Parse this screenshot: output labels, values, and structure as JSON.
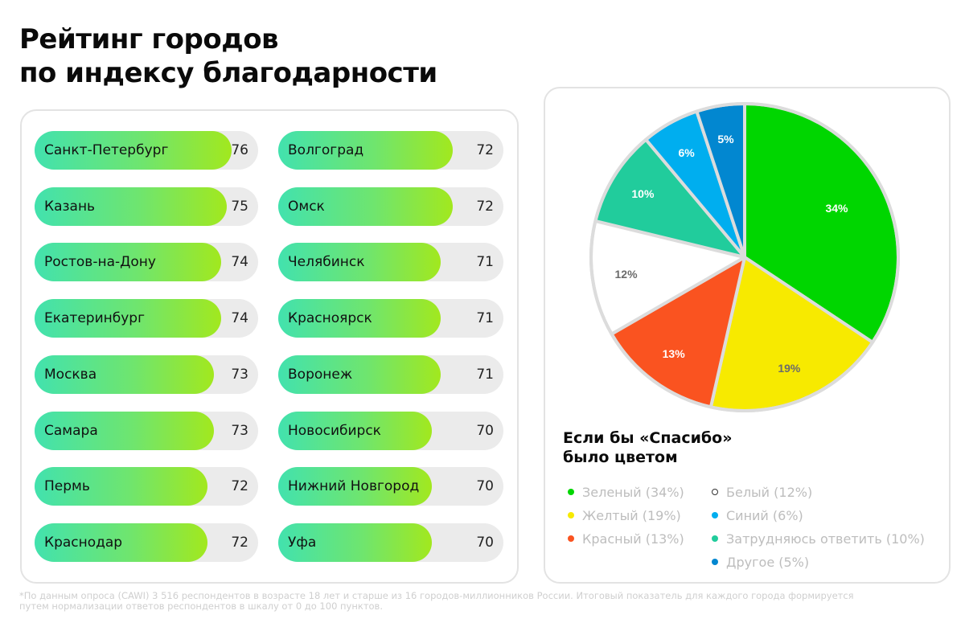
{
  "title": {
    "line1": "Рейтинг городов",
    "line2": "по индексу благодарности"
  },
  "ranking": {
    "scale_min": 0,
    "scale_max": 100,
    "left_column": [
      {
        "city": "Санкт-Петербург",
        "value": 76
      },
      {
        "city": "Казань",
        "value": 75
      },
      {
        "city": "Ростов-на-Дону",
        "value": 74
      },
      {
        "city": "Екатеринбург",
        "value": 74
      },
      {
        "city": "Москва",
        "value": 73
      },
      {
        "city": "Самара",
        "value": 73
      },
      {
        "city": "Пермь",
        "value": 72
      },
      {
        "city": "Краснодар",
        "value": 72
      }
    ],
    "right_column": [
      {
        "city": "Волгоград",
        "value": 72
      },
      {
        "city": "Омск",
        "value": 72
      },
      {
        "city": "Челябинск",
        "value": 71
      },
      {
        "city": "Красноярск",
        "value": 71
      },
      {
        "city": "Воронеж",
        "value": 71
      },
      {
        "city": "Новосибирск",
        "value": 70
      },
      {
        "city": "Нижний Новгород",
        "value": 70
      },
      {
        "city": "Уфа",
        "value": 70
      }
    ]
  },
  "pie": {
    "title_line1": "Если бы «Спасибо»",
    "title_line2": "было цветом",
    "border_color": "#dcdcdc",
    "slices": [
      {
        "label": "34%",
        "value": 34,
        "color": "#00d600",
        "text_color": "#ffffff"
      },
      {
        "label": "19%",
        "value": 19,
        "color": "#f7ea00",
        "text_color": "#6b6b6b"
      },
      {
        "label": "13%",
        "value": 13,
        "color": "#fa5320",
        "text_color": "#ffffff"
      },
      {
        "label": "12%",
        "value": 12,
        "color": "#ffffff",
        "text_color": "#6b6b6b"
      },
      {
        "label": "10%",
        "value": 10,
        "color": "#21cc9c",
        "text_color": "#ffffff"
      },
      {
        "label": "6%",
        "value": 6,
        "color": "#00aeef",
        "text_color": "#ffffff"
      },
      {
        "label": "5%",
        "value": 5,
        "color": "#0287d0",
        "text_color": "#ffffff"
      }
    ],
    "legend": [
      {
        "text": "Зеленый (34%)",
        "color": "#00d600"
      },
      {
        "text": "Желтый (19%)",
        "color": "#f7ea00"
      },
      {
        "text": "Красный (13%)",
        "color": "#fa5320"
      },
      {
        "text": "Белый (12%)",
        "color": "#ffffff"
      },
      {
        "text": "Синий (6%)",
        "color": "#00aeef"
      },
      {
        "text": "Затрудняюсь ответить (10%)",
        "color": "#21cc9c"
      },
      {
        "text": "Другое (5%)",
        "color": "#0287d0"
      }
    ]
  },
  "footnote": {
    "line1": "*По данным опроса (CAWI) 3 516 респондентов в возрасте 18 лет и старше из 16 городов-миллионников России. Итоговый показатель для каждого города формируется",
    "line2": "путем нормализации ответов респондентов в шкалу от 0 до 100 пунктов."
  },
  "chart_data": [
    {
      "type": "bar",
      "orientation": "horizontal",
      "title": "Рейтинг городов по индексу благодарности",
      "categories": [
        "Санкт-Петербург",
        "Казань",
        "Ростов-на-Дону",
        "Екатеринбург",
        "Москва",
        "Самара",
        "Пермь",
        "Краснодар",
        "Волгоград",
        "Омск",
        "Челябинск",
        "Красноярск",
        "Воронеж",
        "Новосибирск",
        "Нижний Новгород",
        "Уфа"
      ],
      "values": [
        76,
        75,
        74,
        74,
        73,
        73,
        72,
        72,
        72,
        72,
        71,
        71,
        71,
        70,
        70,
        70
      ],
      "xlabel": "",
      "ylabel": "",
      "xlim": [
        0,
        100
      ],
      "grid": false,
      "data_labels": true
    },
    {
      "type": "pie",
      "title": "Если бы «Спасибо» было цветом",
      "categories": [
        "Зеленый",
        "Желтый",
        "Красный",
        "Белый",
        "Затрудняюсь ответить",
        "Синий",
        "Другое"
      ],
      "values": [
        34,
        19,
        13,
        12,
        10,
        6,
        5
      ],
      "colors": [
        "#00d600",
        "#f7ea00",
        "#fa5320",
        "#ffffff",
        "#21cc9c",
        "#00aeef",
        "#0287d0"
      ],
      "unit": "%",
      "start_angle": "12 o'clock, clockwise",
      "legend_position": "bottom"
    }
  ]
}
